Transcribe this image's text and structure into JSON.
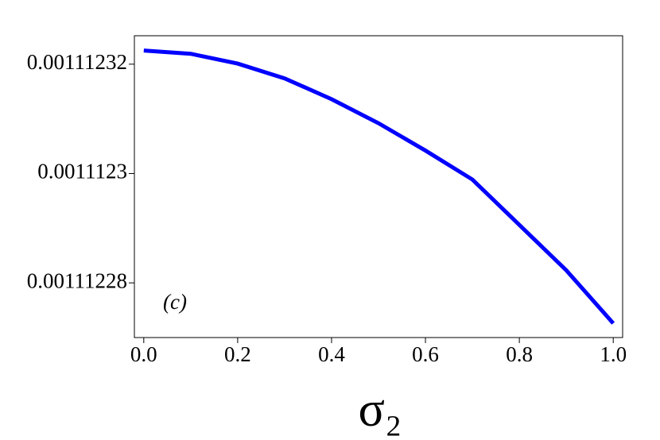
{
  "chart_data": {
    "type": "line",
    "x": [
      0,
      0.1,
      0.2,
      0.3,
      0.4,
      0.5,
      0.6,
      0.7,
      0.8,
      0.9,
      1.0
    ],
    "series": [
      {
        "color": "#0000ff",
        "values": [
          0.0011123225,
          0.0011123219,
          0.0011123201,
          0.0011123174,
          0.0011123136,
          0.0011123092,
          0.0011123042,
          0.0011122989,
          0.0011122906,
          0.0011122823,
          0.0011122726
        ]
      }
    ],
    "xlim": [
      -0.02,
      1.02
    ],
    "ylim": [
      0.00111227,
      0.0011123252
    ],
    "xticks": [
      {
        "value": 0,
        "label": "0.0"
      },
      0.2,
      0.4,
      0.6,
      0.8,
      {
        "value": 1,
        "label": "1.0"
      }
    ],
    "yticks": [
      0.00111228,
      0.0011123,
      0.00111232
    ],
    "xlabel": "σ₂",
    "annotation": "(c)"
  }
}
